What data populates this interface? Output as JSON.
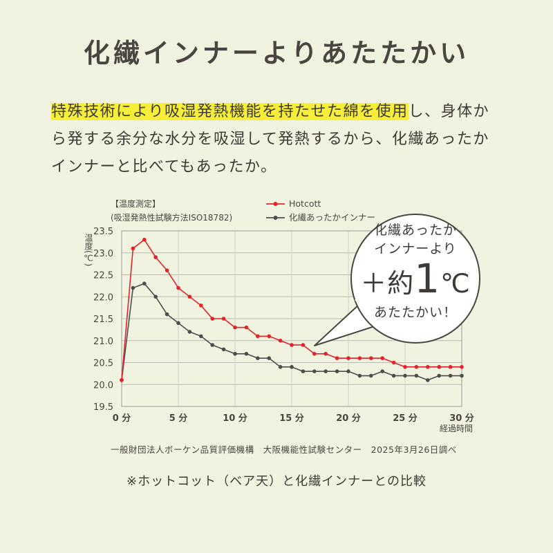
{
  "headline": "化繊インナーよりあたたかい",
  "body": {
    "highlight": "特殊技術により吸湿発熱機能を持たせた綿を使用",
    "rest_line1": "し、身体か",
    "line2": "ら発する余分な水分を吸湿して発熱するから、化繊あったか",
    "line3": "インナーと比べてもあったか。"
  },
  "chart_meta": {
    "test_label": "【温度測定】",
    "test_method": "(吸湿発熱性試験方法ISO18782)"
  },
  "bubble": {
    "line1": "化繊あったか",
    "line2": "インナーより",
    "line3_prefix": "＋約",
    "line3_number": "1",
    "line3_unit": "℃",
    "line4": "あたたかい！"
  },
  "credit": "一般財団法人ボーケン品質評価機構　大阪機能性試験センター　2025年3月26日調べ",
  "footnote": "※ホットコット（ベア天）と化繊インナーとの比較",
  "colors": {
    "hotcott": "#e1232b",
    "synthetic": "#4d4d4d",
    "accent_highlight": "#f7ee3a"
  },
  "chart_data": {
    "type": "line",
    "ylabel": "温度(℃)",
    "xlabel": "経過時間",
    "ylim": [
      19.5,
      23.5
    ],
    "xlim": [
      0,
      30
    ],
    "y_ticks": [
      19.5,
      20.0,
      20.5,
      21.0,
      21.5,
      22.0,
      22.5,
      23.0,
      23.5
    ],
    "y_tick_labels": [
      "19.5",
      "20.0",
      "20.5",
      "21.0",
      "21.5",
      "22.0",
      "22.5",
      "23.0",
      "23.5"
    ],
    "x_ticks": [
      0,
      5,
      10,
      15,
      20,
      25,
      30
    ],
    "x_tick_labels": [
      "0 分",
      "5 分",
      "10 分",
      "15 分",
      "20 分",
      "25 分",
      "30 分"
    ],
    "grid": true,
    "legend_position": "top-right",
    "x": [
      0,
      1,
      2,
      3,
      4,
      5,
      6,
      7,
      8,
      9,
      10,
      11,
      12,
      13,
      14,
      15,
      16,
      17,
      18,
      19,
      20,
      21,
      22,
      23,
      24,
      25,
      26,
      27,
      28,
      29,
      30
    ],
    "series": [
      {
        "name": "Hotcott",
        "color": "#e1232b",
        "values": [
          20.1,
          23.1,
          23.3,
          22.9,
          22.6,
          22.2,
          22.0,
          21.8,
          21.5,
          21.5,
          21.3,
          21.3,
          21.1,
          21.1,
          21.0,
          20.9,
          20.9,
          20.7,
          20.7,
          20.6,
          20.6,
          20.6,
          20.6,
          20.6,
          20.5,
          20.4,
          20.4,
          20.4,
          20.4,
          20.4,
          20.4
        ]
      },
      {
        "name": "化繊あったかインナー",
        "color": "#4d4d4d",
        "values": [
          20.1,
          22.2,
          22.3,
          22.0,
          21.6,
          21.4,
          21.2,
          21.1,
          20.9,
          20.8,
          20.7,
          20.7,
          20.6,
          20.6,
          20.4,
          20.4,
          20.3,
          20.3,
          20.3,
          20.3,
          20.3,
          20.2,
          20.2,
          20.3,
          20.2,
          20.2,
          20.2,
          20.1,
          20.2,
          20.2,
          20.2
        ]
      }
    ]
  }
}
